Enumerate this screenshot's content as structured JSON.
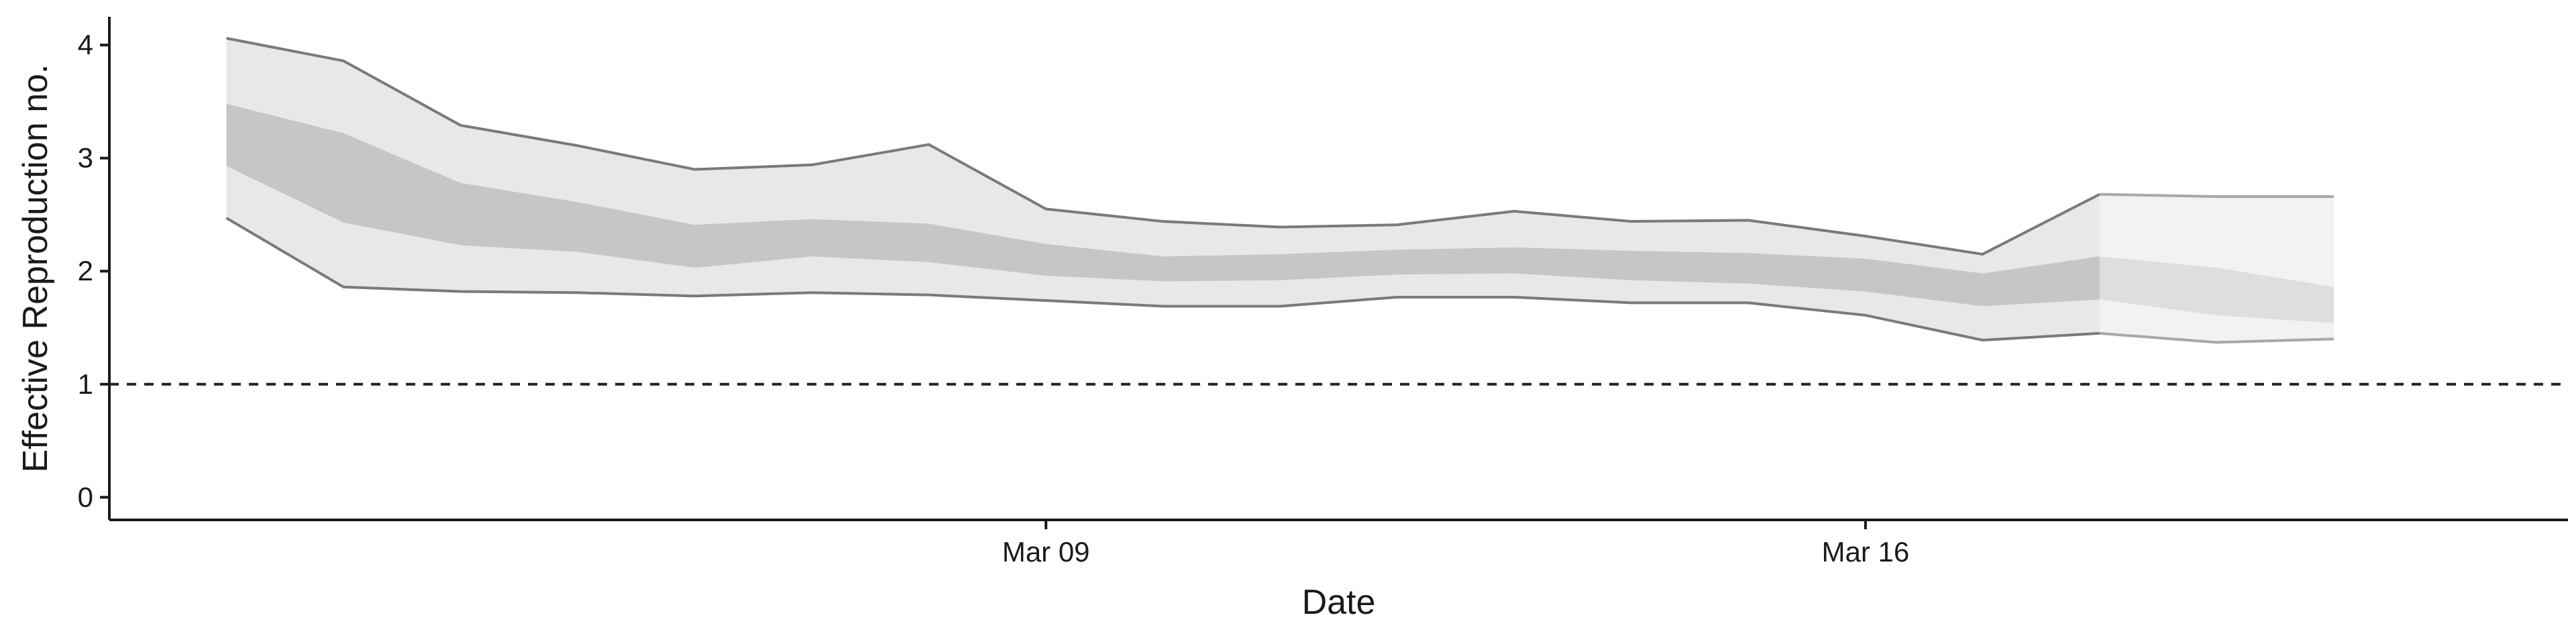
{
  "chart_data": {
    "type": "area",
    "title": "",
    "xlabel": "Date",
    "ylabel": "Effective Reproduction no.",
    "x_start": "2020-03-02",
    "x_end": "2020-03-21",
    "x_range": [
      "2020-03-01",
      "2020-03-22"
    ],
    "x_ticks": [
      {
        "date": "2020-03-09",
        "label": "Mar 09"
      },
      {
        "date": "2020-03-16",
        "label": "Mar 16"
      }
    ],
    "ylim": [
      -0.2,
      4.25
    ],
    "y_ticks": [
      0,
      1,
      2,
      3,
      4
    ],
    "reference_line": {
      "y": 1,
      "style": "dashed"
    },
    "grid": false,
    "legend": "none",
    "nowcast_from": "2020-03-18",
    "bands": {
      "outer": {
        "upper": [
          4.06,
          3.86,
          3.29,
          3.11,
          2.9,
          2.94,
          3.12,
          2.55,
          2.44,
          2.39,
          2.41,
          2.53,
          2.44,
          2.45,
          2.31,
          2.15,
          2.68,
          2.66,
          2.66
        ],
        "lower": [
          2.47,
          1.86,
          1.82,
          1.81,
          1.78,
          1.81,
          1.79,
          1.74,
          1.69,
          1.69,
          1.77,
          1.77,
          1.72,
          1.72,
          1.61,
          1.39,
          1.45,
          1.37,
          1.4
        ]
      },
      "inner": {
        "upper": [
          3.48,
          3.22,
          2.78,
          2.61,
          2.41,
          2.46,
          2.42,
          2.24,
          2.13,
          2.15,
          2.19,
          2.21,
          2.18,
          2.16,
          2.11,
          1.98,
          2.13,
          2.03,
          1.86
        ],
        "lower": [
          2.93,
          2.43,
          2.23,
          2.17,
          2.03,
          2.13,
          2.08,
          1.96,
          1.91,
          1.92,
          1.97,
          1.98,
          1.92,
          1.89,
          1.82,
          1.69,
          1.75,
          1.61,
          1.54
        ]
      }
    },
    "colors": {
      "outer_fill": "#e8e8e8",
      "inner_fill": "#c6c6c6",
      "outer_fill_nowcast": "#f2f2f2",
      "inner_fill_nowcast": "#dedede",
      "bound_line": "#7a7a7a",
      "bound_line_nowcast": "#a8a8a8",
      "axis": "#1a1a1a"
    }
  }
}
